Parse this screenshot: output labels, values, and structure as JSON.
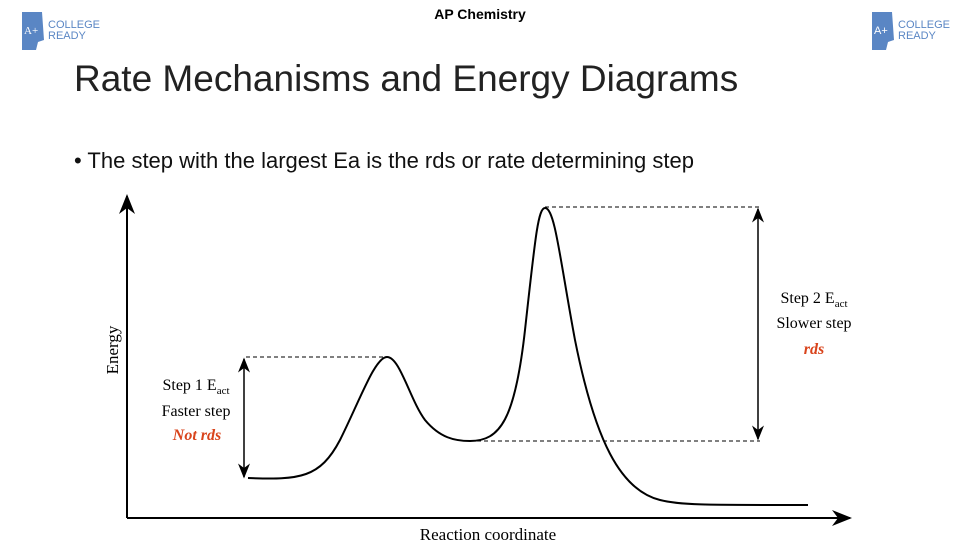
{
  "header": {
    "label": "AP Chemistry",
    "logos": [
      {
        "mark": "A+",
        "line1": "COLLEGE",
        "line2": "READY"
      },
      {
        "mark": "A+",
        "line1": "COLLEGE",
        "line2": "READY"
      }
    ]
  },
  "title": "Rate Mechanisms and Energy Diagrams",
  "bullets": [
    "The step with the largest Ea is the rds or rate determining step"
  ],
  "diagram": {
    "y_axis": "Energy",
    "x_axis": "Reaction coordinate",
    "step1": {
      "label": "Step 1 E",
      "subscript": "act",
      "speed": "Faster step",
      "note": "Not rds"
    },
    "step2": {
      "label": "Step 2 E",
      "subscript": "act",
      "speed": "Slower step",
      "note": "rds"
    }
  }
}
